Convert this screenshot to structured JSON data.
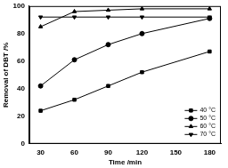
{
  "chart_data": {
    "type": "line",
    "x_label": "Time /min",
    "y_label": "Removal of DBT /%",
    "xlim": [
      20,
      190
    ],
    "xticks": [
      30,
      60,
      90,
      120,
      150,
      180
    ],
    "ylim": [
      0,
      100
    ],
    "yticks": [
      0,
      20,
      40,
      60,
      80,
      100
    ],
    "grid": false,
    "legend": "lower right",
    "series": [
      {
        "name": "40 °C",
        "color": "#000000",
        "marker": "square",
        "x": [
          30,
          60,
          90,
          120,
          180
        ],
        "values": [
          24,
          32,
          42,
          52,
          67
        ]
      },
      {
        "name": "50 °C",
        "color": "#000000",
        "marker": "circle",
        "x": [
          30,
          60,
          90,
          120,
          180
        ],
        "values": [
          42,
          61,
          72,
          80,
          91
        ]
      },
      {
        "name": "60 °C",
        "color": "#000000",
        "marker": "triangle",
        "x": [
          30,
          60,
          90,
          120,
          180
        ],
        "values": [
          85,
          96,
          97,
          98,
          98
        ]
      },
      {
        "name": "70 °C",
        "color": "#000000",
        "marker": "triangle_down",
        "x": [
          30,
          60,
          90,
          120,
          180
        ],
        "values": [
          92,
          92,
          92,
          92,
          92
        ]
      }
    ]
  }
}
